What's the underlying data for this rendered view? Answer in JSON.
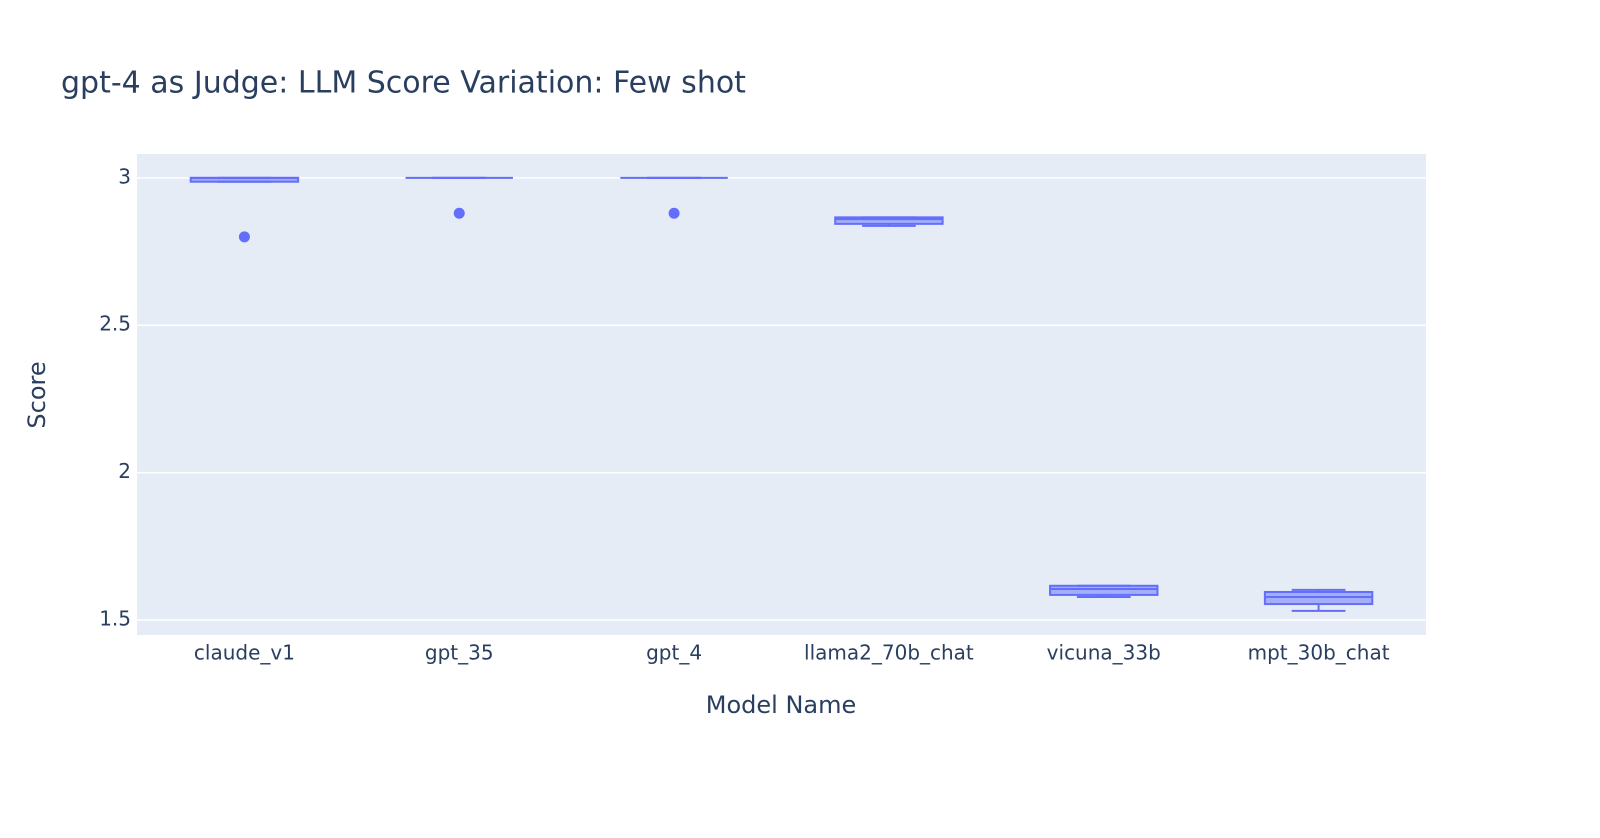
{
  "chart_data": {
    "type": "box",
    "title": "gpt-4 as Judge: LLM Score Variation: Few shot",
    "x_label": "Model Name",
    "y_label": "Score",
    "categories": [
      "claude_v1",
      "gpt_35",
      "gpt_4",
      "llama2_70b_chat",
      "vicuna_33b",
      "mpt_30b_chat"
    ],
    "color": "#636efa",
    "min": [
      2.987,
      3,
      3,
      2.837,
      1.578,
      1.531
    ],
    "q1": [
      2.987,
      3,
      3,
      2.844,
      1.585,
      1.554
    ],
    "median": [
      3,
      3,
      3,
      2.86,
      1.605,
      1.578
    ],
    "q3": [
      3,
      3,
      3,
      2.866,
      1.616,
      1.595
    ],
    "max": [
      3,
      3,
      3,
      2.866,
      1.616,
      1.602
    ],
    "outliers": [
      [
        2.8
      ],
      [
        2.88
      ],
      [
        2.88
      ],
      [],
      [],
      []
    ],
    "ylim": [
      1.449,
      3.081
    ],
    "yticks": [
      1.5,
      2,
      2.5,
      3
    ],
    "grid": true
  }
}
